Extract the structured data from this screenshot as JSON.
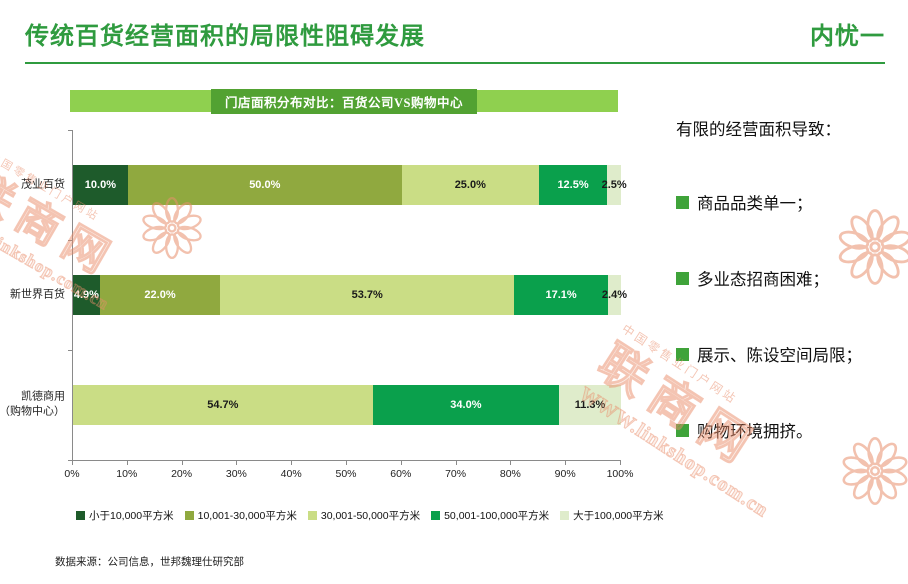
{
  "slide": {
    "title": "传统百货经营面积的局限性阻碍发展",
    "corner_tag": "内忧一",
    "source_note": "数据来源：公司信息，世邦魏理仕研究部"
  },
  "chart_data": {
    "type": "bar",
    "variant": "horizontal-stacked",
    "title": "门店面积分布对比：百货公司VS购物中心",
    "unit": "%",
    "xlim": [
      0,
      100
    ],
    "x_ticks": [
      "0%",
      "10%",
      "20%",
      "30%",
      "40%",
      "50%",
      "60%",
      "70%",
      "80%",
      "90%",
      "100%"
    ],
    "categories": [
      [
        "茂业百货"
      ],
      [
        "新世界百货"
      ],
      [
        "凯德商用",
        "（购物中心）"
      ]
    ],
    "series": [
      {
        "name": "小于10,000平方米",
        "color": "#1e5b2b",
        "label_color": "#ffffff",
        "values": [
          10.0,
          4.9,
          0
        ]
      },
      {
        "name": "10,001-30,000平方米",
        "color": "#90a93f",
        "label_color": "#ffffff",
        "values": [
          50.0,
          22.0,
          0
        ]
      },
      {
        "name": "30,001-50,000平方米",
        "color": "#cadd85",
        "label_color": "#1a1a1a",
        "values": [
          25.0,
          53.7,
          54.7
        ]
      },
      {
        "name": "50,001-100,000平方米",
        "color": "#0aa04c",
        "label_color": "#ffffff",
        "values": [
          12.5,
          17.1,
          34.0
        ]
      },
      {
        "name": "大于100,000平方米",
        "color": "#dfeccb",
        "label_color": "#1a1a1a",
        "values": [
          2.5,
          2.4,
          11.3
        ]
      }
    ],
    "legend_position": "bottom",
    "grid": false
  },
  "right_panel": {
    "heading": "有限的经营面积导致：",
    "bullets": [
      "商品品类单一；",
      "多业态招商困难；",
      "展示、陈设空间局限；",
      "购物环境拥挤。"
    ]
  },
  "watermark": {
    "site_name": "联商网",
    "tagline": "中国零售业门户网站",
    "url": "www.linkshop.com.cn",
    "url_caps": "WWW.linkshop.com.cn"
  },
  "colors": {
    "title_green": "#2f9b3f",
    "banner_light_green": "#8fd04f",
    "banner_dark_green": "#52a232",
    "bullet_green": "#3fa33a",
    "watermark_orange": "#ec9b7c"
  }
}
